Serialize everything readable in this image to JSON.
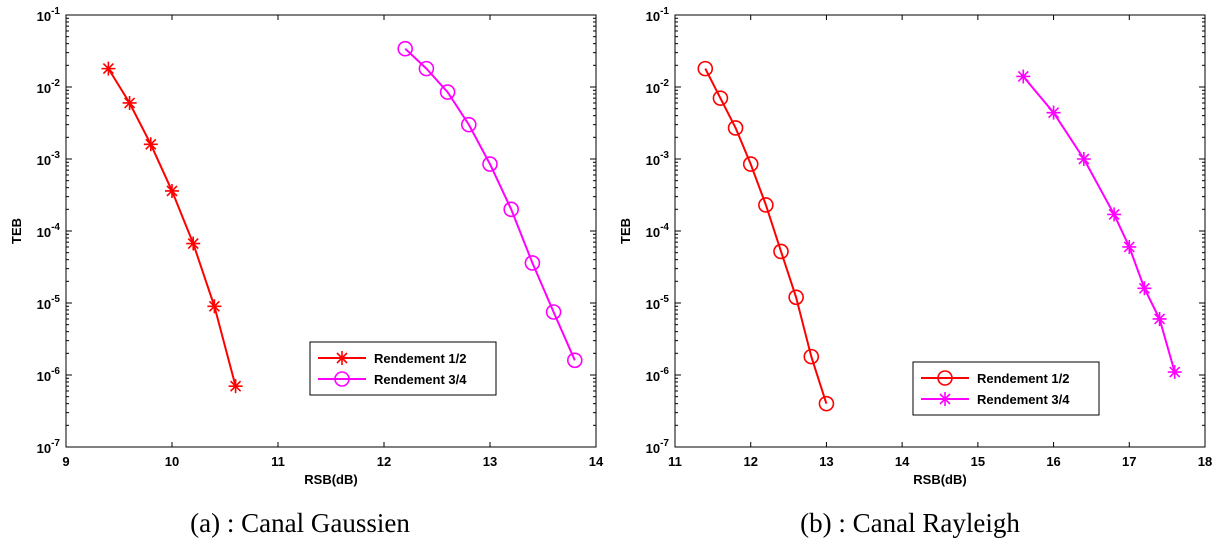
{
  "chart_data": [
    {
      "type": "line",
      "title": "",
      "caption": "(a) : Canal Gaussien",
      "xlabel": "RSB(dB)",
      "ylabel": "TEB",
      "xlim": [
        9,
        14
      ],
      "ylim_exponents": [
        -7,
        -1
      ],
      "yscale": "log",
      "xticks": [
        "9",
        "10",
        "11",
        "12",
        "13",
        "14"
      ],
      "yticks": [
        "-7",
        "-6",
        "-5",
        "-4",
        "-3",
        "-2",
        "-1"
      ],
      "legend_position": "bottom-right",
      "grid": false,
      "series": [
        {
          "name": "Rendement 1/2",
          "color": "#ff0000",
          "marker": "asterisk",
          "x": [
            9.4,
            9.6,
            9.8,
            10.0,
            10.2,
            10.4,
            10.6
          ],
          "y": [
            0.018,
            0.006,
            0.0016,
            0.00036,
            6.7e-05,
            9e-06,
            7e-07
          ]
        },
        {
          "name": "Rendement 3/4",
          "color": "#ff00ff",
          "marker": "circle",
          "x": [
            12.2,
            12.4,
            12.6,
            12.8,
            13.0,
            13.2,
            13.4,
            13.6,
            13.8
          ],
          "y": [
            0.034,
            0.018,
            0.0085,
            0.003,
            0.00085,
            0.0002,
            3.6e-05,
            7.5e-06,
            1.6e-06
          ]
        }
      ]
    },
    {
      "type": "line",
      "title": "",
      "caption": "(b) : Canal Rayleigh",
      "xlabel": "RSB(dB)",
      "ylabel": "TEB",
      "xlim": [
        11,
        18
      ],
      "ylim_exponents": [
        -7,
        -1
      ],
      "yscale": "log",
      "xticks": [
        "11",
        "12",
        "13",
        "14",
        "15",
        "16",
        "17",
        "18"
      ],
      "yticks": [
        "-7",
        "-6",
        "-5",
        "-4",
        "-3",
        "-2",
        "-1"
      ],
      "legend_position": "bottom-right",
      "grid": false,
      "series": [
        {
          "name": "Rendement 1/2",
          "color": "#ff0000",
          "marker": "circle",
          "x": [
            11.4,
            11.6,
            11.8,
            12.0,
            12.2,
            12.4,
            12.6,
            12.8,
            13.0
          ],
          "y": [
            0.018,
            0.007,
            0.0027,
            0.00085,
            0.00023,
            5.2e-05,
            1.2e-05,
            1.8e-06,
            4e-07
          ]
        },
        {
          "name": "Rendement 3/4",
          "color": "#ff00ff",
          "marker": "asterisk",
          "x": [
            15.6,
            16.0,
            16.4,
            16.8,
            17.0,
            17.2,
            17.4,
            17.6
          ],
          "y": [
            0.014,
            0.0044,
            0.001,
            0.00017,
            6e-05,
            1.6e-05,
            6e-06,
            1.1e-06
          ]
        }
      ]
    }
  ]
}
